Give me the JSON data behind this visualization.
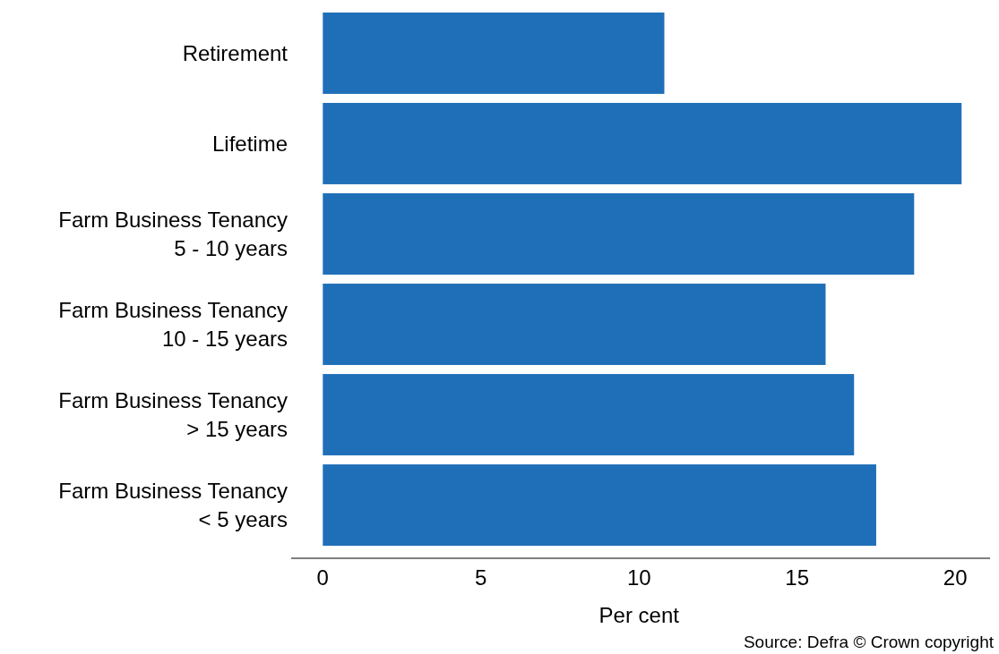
{
  "chart_data": {
    "type": "bar",
    "orientation": "horizontal",
    "xlabel": "Per cent",
    "categories": [
      "Retirement",
      "Lifetime",
      "Farm Business Tenancy\n5 - 10 years",
      "Farm Business Tenancy\n10 - 15 years",
      "Farm Business Tenancy\n> 15 years",
      "Farm Business Tenancy\n< 5 years"
    ],
    "values": [
      10.8,
      20.2,
      18.7,
      15.9,
      16.8,
      17.5
    ],
    "color": "#1f6fb8",
    "xlim": [
      -1,
      21.1
    ],
    "xticks": [
      0,
      5,
      10,
      15,
      20
    ],
    "grid": false,
    "annotations": [
      "Source: Defra © Crown copyright"
    ]
  }
}
